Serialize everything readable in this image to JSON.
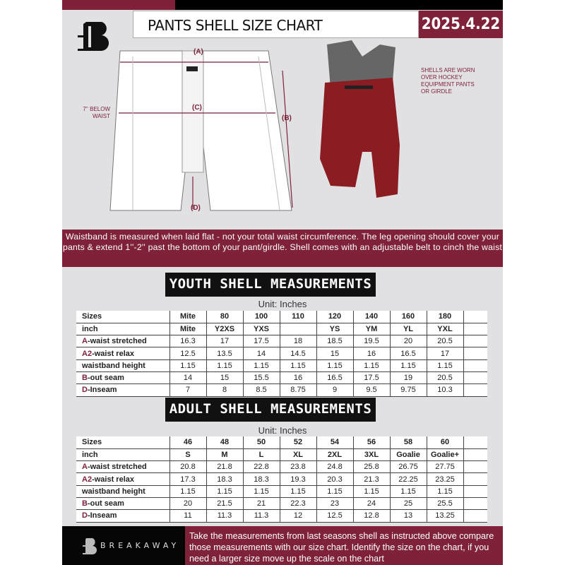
{
  "header": {
    "title": "PANTS SHELL SIZE CHART",
    "date": "2025.4.22",
    "logo_letter": "B"
  },
  "diagram": {
    "label_a": "(A)",
    "label_b": "(B)",
    "label_c": "(C)",
    "label_d": "(D)",
    "below_waist_note": "7'' BELOW WAIST",
    "shell_note": "SHELLS ARE WORN OVER HOCKEY EQUIPMENT PANTS OR GIRDLE"
  },
  "colors": {
    "maroon": "#7e2139",
    "black": "#000000",
    "background": "#e1e1e4"
  },
  "banner": {
    "text": "Waistband is measured when laid flat - not your total waist circumference. The leg opening should cover your pants & extend 1''-2'' past the bottom of your pant/girdle. Shell comes with an adjustable belt to cinch the waist"
  },
  "youth": {
    "title": "YOUTH SHELL MEASUREMENTS",
    "unit": "Unit: Inches",
    "rows": [
      {
        "prefix": "",
        "label": "Sizes",
        "cells": [
          "Mite",
          "80",
          "100",
          "110",
          "120",
          "140",
          "160",
          "180"
        ]
      },
      {
        "prefix": "",
        "label": "inch",
        "cells": [
          "Mite",
          "Y2XS",
          "YXS",
          "",
          "YS",
          "YM",
          "YL",
          "YXL"
        ]
      },
      {
        "prefix": "A",
        "label": "-waist stretched",
        "cells": [
          "16.3",
          "17",
          "17.5",
          "18",
          "18.5",
          "19.5",
          "20",
          "20.5"
        ]
      },
      {
        "prefix": "A2",
        "label": "-waist relax",
        "cells": [
          "12.5",
          "13.5",
          "14",
          "14.5",
          "15",
          "16",
          "16.5",
          "17"
        ]
      },
      {
        "prefix": "",
        "label": "waistband height",
        "cells": [
          "1.15",
          "1.15",
          "1.15",
          "1.15",
          "1.15",
          "1.15",
          "1.15",
          "1.15"
        ]
      },
      {
        "prefix": "B",
        "label": "-out seam",
        "cells": [
          "14",
          "15",
          "15.5",
          "16",
          "16.5",
          "17.5",
          "19",
          "20.5"
        ]
      },
      {
        "prefix": "D",
        "label": "-Inseam",
        "cells": [
          "7",
          "8",
          "8.5",
          "8.75",
          "9",
          "9.5",
          "9.75",
          "10.3"
        ]
      }
    ]
  },
  "adult": {
    "title": "ADULT SHELL MEASUREMENTS",
    "unit": "Unit: Inches",
    "rows": [
      {
        "prefix": "",
        "label": "Sizes",
        "cells": [
          "46",
          "48",
          "50",
          "52",
          "54",
          "56",
          "58",
          "60"
        ]
      },
      {
        "prefix": "",
        "label": "inch",
        "cells": [
          "S",
          "M",
          "L",
          "XL",
          "2XL",
          "3XL",
          "Goalie",
          "Goalie+"
        ]
      },
      {
        "prefix": "A",
        "label": "-waist stretched",
        "cells": [
          "20.8",
          "21.8",
          "22.8",
          "23.8",
          "24.8",
          "25.8",
          "26.75",
          "27.75"
        ]
      },
      {
        "prefix": "A2",
        "label": "-waist relax",
        "cells": [
          "17.3",
          "18.3",
          "18.3",
          "19.3",
          "20.3",
          "21.3",
          "22.25",
          "23.25"
        ]
      },
      {
        "prefix": "",
        "label": "waistband height",
        "cells": [
          "1.15",
          "1.15",
          "1.15",
          "1.15",
          "1.15",
          "1.15",
          "1.15",
          "1.15"
        ]
      },
      {
        "prefix": "B",
        "label": "-out seam",
        "cells": [
          "20",
          "21.5",
          "21",
          "22.3",
          "23",
          "24",
          "25",
          "25.5"
        ]
      },
      {
        "prefix": "D",
        "label": "-Inseam",
        "cells": [
          "11",
          "11.3",
          "11.3",
          "12",
          "12.5",
          "12.8",
          "13",
          "13.25"
        ]
      }
    ]
  },
  "footer": {
    "brand": "BREAKAWAY",
    "text": "Take the measurements from last seasons shell as instructed above compare those measurements  with our size chart. Identify the size on the chart, if you need a larger size move up the scale on the chart"
  }
}
